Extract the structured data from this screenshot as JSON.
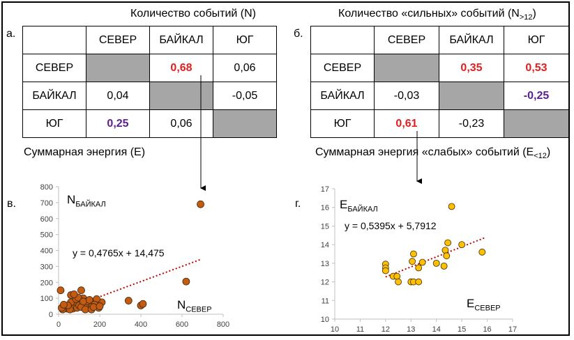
{
  "panel_a": {
    "letter": "а.",
    "title": "Количество событий (N)",
    "cols": [
      "СЕВЕР",
      "БАЙКАЛ",
      "ЮГ"
    ],
    "rows": [
      {
        "label": "СЕВЕР",
        "cells": [
          "",
          "0,68",
          "0,06"
        ]
      },
      {
        "label": "БАЙКАЛ",
        "cells": [
          "0,04",
          "",
          "-0,05"
        ]
      },
      {
        "label": "ЮГ",
        "cells": [
          "0,25",
          "0,06",
          ""
        ]
      }
    ],
    "bottom_caption": "Суммарная энергия (E)"
  },
  "panel_b": {
    "letter": "б.",
    "title_main": "Количество «сильных» событий (N",
    "title_sub": ">12",
    "title_end": ")",
    "cols": [
      "СЕВЕР",
      "БАЙКАЛ",
      "ЮГ"
    ],
    "rows": [
      {
        "label": "СЕВЕР",
        "cells": [
          "",
          "0,35",
          "0,53"
        ]
      },
      {
        "label": "БАЙКАЛ",
        "cells": [
          "-0,03",
          "",
          "-0,25"
        ]
      },
      {
        "label": "ЮГ",
        "cells": [
          "0,61",
          "-0,23",
          ""
        ]
      }
    ],
    "bottom_caption_main": "Суммарная энергия «слабых» событий (E",
    "bottom_caption_sub": "<12",
    "bottom_caption_end": ")"
  },
  "colors": {
    "highlight_red": "#e02020",
    "highlight_purple": "#5b1f8f",
    "diag_gray": "#a6a6a6",
    "scatter_v": "#c55a11",
    "scatter_g": "#ffc000",
    "trend": "#c00000"
  },
  "chart_data": [
    {
      "type": "scatter",
      "panel_letter": "в.",
      "ylabel_main": "N",
      "ylabel_sub": "БАЙКАЛ",
      "xlabel_main": "N",
      "xlabel_sub": "СЕВЕР",
      "equation": "y = 0,4765x + 14,475",
      "trend": {
        "slope": 0.4765,
        "intercept": 14.475,
        "x_from": 60,
        "x_to": 690
      },
      "xlim": [
        0,
        800
      ],
      "ylim": [
        0,
        800
      ],
      "xticks": [
        "0",
        "200",
        "400",
        "600",
        "800"
      ],
      "yticks": [
        "0",
        "100",
        "200",
        "300",
        "400",
        "500",
        "600",
        "700",
        "800"
      ],
      "points": [
        [
          690,
          690
        ],
        [
          620,
          205
        ],
        [
          340,
          85
        ],
        [
          400,
          55
        ],
        [
          410,
          65
        ],
        [
          210,
          75
        ],
        [
          10,
          150
        ],
        [
          110,
          150
        ],
        [
          160,
          80
        ],
        [
          185,
          95
        ],
        [
          175,
          60
        ],
        [
          195,
          40
        ],
        [
          150,
          50
        ],
        [
          130,
          60
        ],
        [
          120,
          100
        ],
        [
          100,
          90
        ],
        [
          90,
          70
        ],
        [
          80,
          80
        ],
        [
          70,
          60
        ],
        [
          60,
          75
        ],
        [
          50,
          45
        ],
        [
          40,
          35
        ],
        [
          30,
          50
        ],
        [
          20,
          30
        ],
        [
          15,
          40
        ],
        [
          70,
          35
        ],
        [
          90,
          40
        ],
        [
          100,
          55
        ],
        [
          110,
          45
        ],
        [
          130,
          30
        ],
        [
          140,
          80
        ],
        [
          160,
          30
        ],
        [
          170,
          45
        ],
        [
          60,
          120
        ],
        [
          85,
          95
        ],
        [
          95,
          105
        ],
        [
          120,
          80
        ],
        [
          55,
          30
        ],
        [
          45,
          55
        ],
        [
          25,
          60
        ],
        [
          200,
          50
        ],
        [
          150,
          90
        ],
        [
          75,
          125
        ]
      ]
    },
    {
      "type": "scatter",
      "panel_letter": "г.",
      "ylabel_main": "E",
      "ylabel_sub": "БАЙКАЛ",
      "xlabel_main": "E",
      "xlabel_sub": "СЕВЕР",
      "equation": "y = 0,5395x + 5,7912",
      "trend": {
        "slope": 0.5395,
        "intercept": 5.7912,
        "x_from": 12.0,
        "x_to": 15.95
      },
      "xlim": [
        10,
        17
      ],
      "ylim": [
        10,
        17
      ],
      "xticks": [
        "10",
        "11",
        "12",
        "13",
        "14",
        "15",
        "16",
        "17"
      ],
      "yticks": [
        "10",
        "11",
        "12",
        "13",
        "14",
        "15",
        "16",
        "17"
      ],
      "points": [
        [
          12.0,
          12.95
        ],
        [
          12.0,
          12.75
        ],
        [
          12.0,
          12.6
        ],
        [
          12.3,
          12.3
        ],
        [
          12.45,
          12.3
        ],
        [
          12.5,
          12.0
        ],
        [
          13.0,
          12.0
        ],
        [
          13.1,
          12.0
        ],
        [
          13.3,
          12.0
        ],
        [
          13.05,
          13.1
        ],
        [
          13.1,
          13.5
        ],
        [
          13.3,
          12.75
        ],
        [
          13.45,
          13.05
        ],
        [
          14.0,
          13.0
        ],
        [
          14.3,
          12.85
        ],
        [
          14.35,
          13.7
        ],
        [
          14.4,
          13.4
        ],
        [
          14.45,
          14.1
        ],
        [
          14.6,
          16.05
        ],
        [
          15.0,
          14.0
        ],
        [
          15.8,
          13.6
        ]
      ]
    }
  ]
}
